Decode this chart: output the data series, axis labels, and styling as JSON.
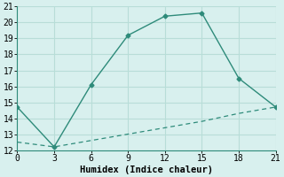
{
  "xlabel": "Humidex (Indice chaleur)",
  "line1_x": [
    0,
    3,
    6,
    9,
    12,
    15,
    18,
    21
  ],
  "line1_y": [
    14.7,
    12.2,
    16.1,
    19.2,
    20.4,
    20.6,
    16.5,
    14.7
  ],
  "line2_x": [
    0,
    3,
    6,
    9,
    12,
    15,
    18,
    21
  ],
  "line2_y": [
    12.5,
    12.2,
    12.6,
    13.0,
    13.4,
    13.8,
    14.3,
    14.7
  ],
  "line_color": "#2e8b7a",
  "bg_color": "#d8f0ee",
  "grid_color": "#b8ddd8",
  "xlim": [
    0,
    21
  ],
  "ylim": [
    12,
    21
  ],
  "xticks": [
    0,
    3,
    6,
    9,
    12,
    15,
    18,
    21
  ],
  "yticks": [
    12,
    13,
    14,
    15,
    16,
    17,
    18,
    19,
    20,
    21
  ],
  "xlabel_fontsize": 7.5,
  "tick_fontsize": 7
}
